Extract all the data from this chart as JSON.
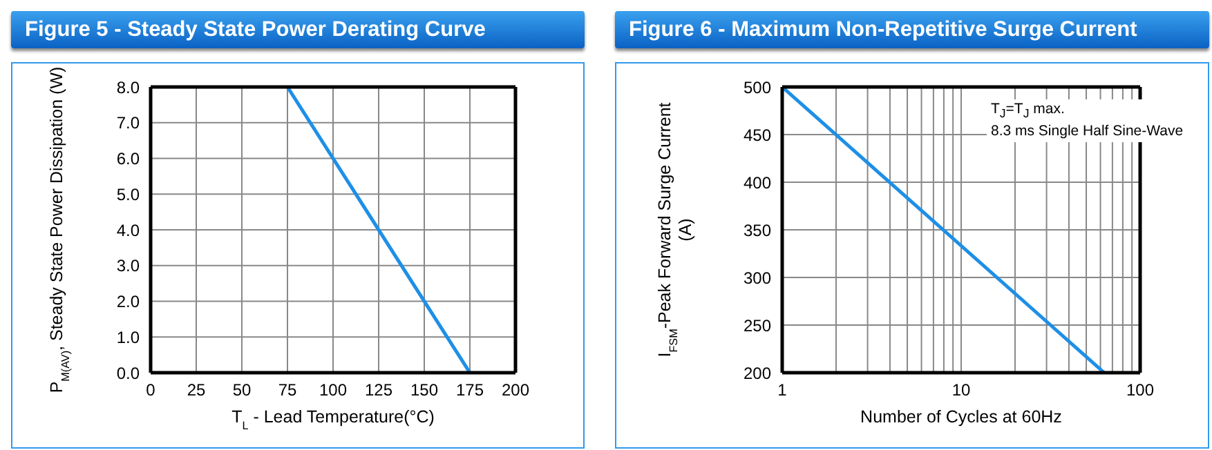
{
  "chart_data": [
    {
      "type": "line",
      "title": "Figure 5 - Steady State Power Derating Curve",
      "xlabel": "T$_{L}$ - Lead Temperature(°C)",
      "ylabel": "P$_{M(AV)}$, Steady State Power Dissipation (W)",
      "x": [
        75,
        175
      ],
      "series": [
        {
          "color": "#1e8fe6",
          "values": [
            8,
            0
          ]
        }
      ],
      "xlim": [
        0,
        200
      ],
      "xticks": [
        0,
        25,
        50,
        75,
        100,
        125,
        150,
        175,
        200
      ],
      "ylim": [
        0,
        8
      ],
      "yticks": [
        {
          "value": 0,
          "label": "0.0"
        },
        {
          "value": 1,
          "label": "1.0"
        },
        {
          "value": 2,
          "label": "2.0"
        },
        {
          "value": 3,
          "label": "3.0"
        },
        {
          "value": 4,
          "label": "4.0"
        },
        {
          "value": 5,
          "label": "5.0"
        },
        {
          "value": 6,
          "label": "6.0"
        },
        {
          "value": 7,
          "label": "7.0"
        },
        {
          "value": 8,
          "label": "8.0"
        }
      ],
      "grid": true,
      "legend": false,
      "marker": "none",
      "line_style": "solid"
    },
    {
      "type": "line",
      "title": "Figure 6 - Maximum Non-Repetitive Surge Current",
      "xlabel": "Number of Cycles at 60Hz",
      "ylabel": "I$_{FSM}$-Peak Forward Surge Current\n(A)",
      "annotations": [
        "T$_{J}$=T$_{J}$ max.",
        "8.3 ms Single Half Sine-Wave"
      ],
      "x": [
        1,
        63
      ],
      "series": [
        {
          "color": "#1e8fe6",
          "values": [
            500,
            200
          ]
        }
      ],
      "xlim": [
        1,
        100
      ],
      "xticks": [
        1,
        {
          "value": 2,
          "label": null
        },
        {
          "value": 3,
          "label": null
        },
        {
          "value": 4,
          "label": null
        },
        {
          "value": 5,
          "label": null
        },
        {
          "value": 6,
          "label": null
        },
        {
          "value": 7,
          "label": null
        },
        {
          "value": 8,
          "label": null
        },
        {
          "value": 9,
          "label": null
        },
        10,
        {
          "value": 20,
          "label": null
        },
        {
          "value": 30,
          "label": null
        },
        {
          "value": 40,
          "label": null
        },
        {
          "value": 50,
          "label": null
        },
        {
          "value": 60,
          "label": null
        },
        {
          "value": 70,
          "label": null
        },
        {
          "value": 80,
          "label": null
        },
        {
          "value": 90,
          "label": null
        },
        100
      ],
      "ylim": [
        200,
        500
      ],
      "yticks": [
        200,
        250,
        300,
        350,
        400,
        450,
        500
      ],
      "log": "x",
      "grid": true,
      "legend": false,
      "marker": "none",
      "line_style": "solid"
    }
  ]
}
